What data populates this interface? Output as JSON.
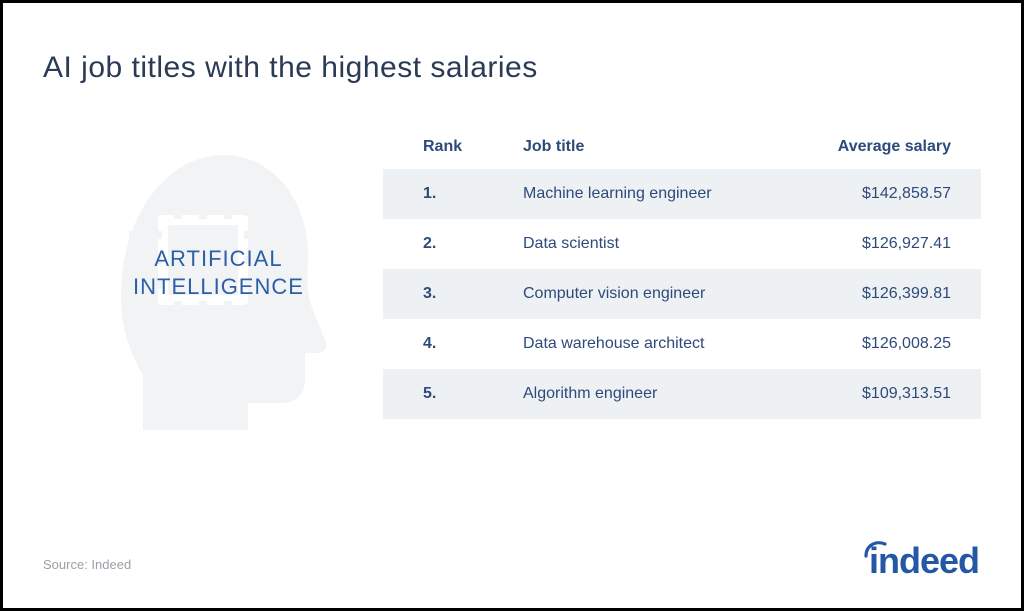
{
  "title": "AI job titles with the highest salaries",
  "colors": {
    "title": "#2b3a55",
    "header_text": "#2d4a7a",
    "row_text": "#2d4a7a",
    "row_alt_bg": "#eef1f4",
    "row_bg": "#ffffff",
    "ai_label": "#2d5fa5",
    "silhouette": "#e7eaee",
    "source": "#9aa0a6",
    "logo": "#2557a7"
  },
  "ai_label_line1": "ARTIFICIAL",
  "ai_label_line2": "INTELLIGENCE",
  "table": {
    "columns": [
      "Rank",
      "Job title",
      "Average salary"
    ],
    "rows": [
      {
        "rank": "1.",
        "title": "Machine learning engineer",
        "salary": "$142,858.57"
      },
      {
        "rank": "2.",
        "title": "Data scientist",
        "salary": "$126,927.41"
      },
      {
        "rank": "3.",
        "title": "Computer vision engineer",
        "salary": "$126,399.81"
      },
      {
        "rank": "4.",
        "title": "Data warehouse architect",
        "salary": "$126,008.25"
      },
      {
        "rank": "5.",
        "title": "Algorithm engineer",
        "salary": "$109,313.51"
      }
    ]
  },
  "source": "Source: Indeed",
  "logo_text": "indeed"
}
